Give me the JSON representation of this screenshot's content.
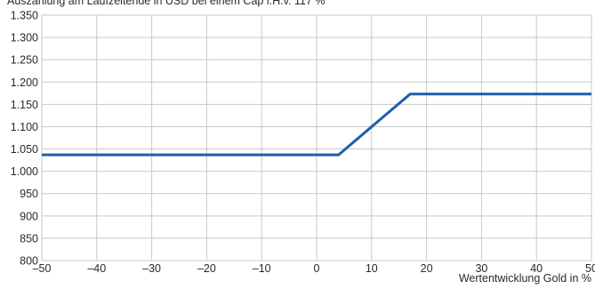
{
  "chart_data": {
    "type": "line",
    "title": "",
    "ylabel": "Auszahlung am Laufzeitende in USD bei einem Cap i.H.v. 117 %",
    "xlabel": "Wertentwicklung Gold in %",
    "xlim": [
      -50,
      50
    ],
    "ylim": [
      800,
      1350
    ],
    "x_ticks": [
      -50,
      -40,
      -30,
      -20,
      -10,
      0,
      10,
      20,
      30,
      40,
      50
    ],
    "x_tick_labels": [
      "–50",
      "–40",
      "–30",
      "–20",
      "–10",
      "0",
      "10",
      "20",
      "30",
      "40",
      "50"
    ],
    "y_ticks": [
      800,
      850,
      900,
      950,
      1000,
      1050,
      1100,
      1150,
      1200,
      1250,
      1300,
      1350
    ],
    "y_tick_labels": [
      "800",
      "850",
      "900",
      "950",
      "1.000",
      "1.050",
      "1.100",
      "1.150",
      "1.200",
      "1.250",
      "1.300",
      "1.350"
    ],
    "grid": true,
    "series": [
      {
        "color": "#1f5fa8",
        "x": [
          -50,
          4,
          17,
          50
        ],
        "y": [
          1037,
          1037,
          1173,
          1173
        ]
      }
    ]
  }
}
